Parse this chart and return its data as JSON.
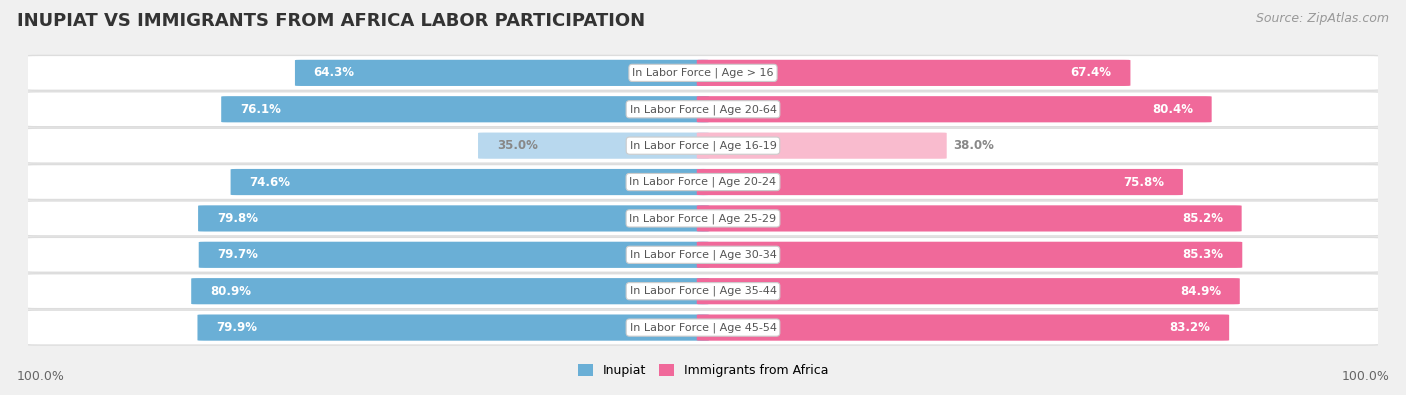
{
  "title": "INUPIAT VS IMMIGRANTS FROM AFRICA LABOR PARTICIPATION",
  "source": "Source: ZipAtlas.com",
  "categories": [
    "In Labor Force | Age > 16",
    "In Labor Force | Age 20-64",
    "In Labor Force | Age 16-19",
    "In Labor Force | Age 20-24",
    "In Labor Force | Age 25-29",
    "In Labor Force | Age 30-34",
    "In Labor Force | Age 35-44",
    "In Labor Force | Age 45-54"
  ],
  "inupiat_values": [
    64.3,
    76.1,
    35.0,
    74.6,
    79.8,
    79.7,
    80.9,
    79.9
  ],
  "africa_values": [
    67.4,
    80.4,
    38.0,
    75.8,
    85.2,
    85.3,
    84.9,
    83.2
  ],
  "inupiat_color_dark": "#6AAFD6",
  "inupiat_color_light": "#B8D8EE",
  "africa_color_dark": "#F0699A",
  "africa_color_light": "#F9BBCE",
  "bg_color": "#F0F0F0",
  "row_bg_color": "#FFFFFF",
  "row_border_color": "#DDDDDD",
  "max_value": 100.0,
  "legend_inupiat": "Inupiat",
  "legend_africa": "Immigrants from Africa",
  "bottom_label": "100.0%",
  "title_fontsize": 13,
  "source_fontsize": 9,
  "value_fontsize": 8.5,
  "cat_fontsize": 8,
  "legend_fontsize": 9
}
